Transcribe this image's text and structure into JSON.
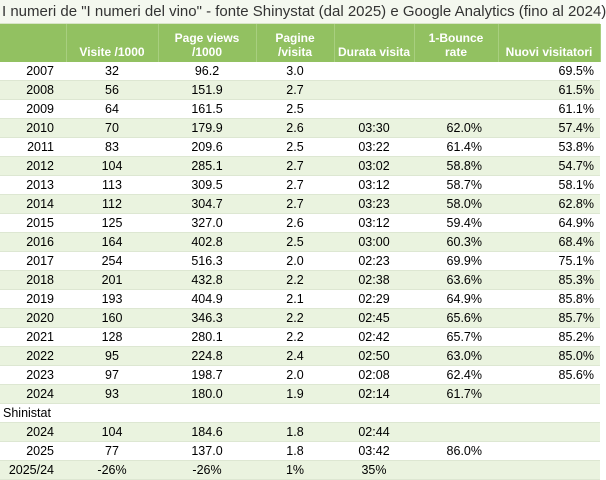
{
  "title": "I numeri de \"I numeri del vino\" - fonte Shinystat (dal 2025) e Google Analytics (fino al 2024)",
  "headers": [
    "",
    "Visite /1000",
    "Page views /1000",
    "Pagine /visita",
    "Durata visita",
    "1-Bounce rate",
    "Nuovi visitatori"
  ],
  "ga_rows": [
    [
      "2007",
      "32",
      "96.2",
      "3.0",
      "",
      "",
      "69.5%"
    ],
    [
      "2008",
      "56",
      "151.9",
      "2.7",
      "",
      "",
      "61.5%"
    ],
    [
      "2009",
      "64",
      "161.5",
      "2.5",
      "",
      "",
      "61.1%"
    ],
    [
      "2010",
      "70",
      "179.9",
      "2.6",
      "03:30",
      "62.0%",
      "57.4%"
    ],
    [
      "2011",
      "83",
      "209.6",
      "2.5",
      "03:22",
      "61.4%",
      "53.8%"
    ],
    [
      "2012",
      "104",
      "285.1",
      "2.7",
      "03:02",
      "58.8%",
      "54.7%"
    ],
    [
      "2013",
      "113",
      "309.5",
      "2.7",
      "03:12",
      "58.7%",
      "58.1%"
    ],
    [
      "2014",
      "112",
      "304.7",
      "2.7",
      "03:23",
      "58.0%",
      "62.8%"
    ],
    [
      "2015",
      "125",
      "327.0",
      "2.6",
      "03:12",
      "59.4%",
      "64.9%"
    ],
    [
      "2016",
      "164",
      "402.8",
      "2.5",
      "03:00",
      "60.3%",
      "68.4%"
    ],
    [
      "2017",
      "254",
      "516.3",
      "2.0",
      "02:23",
      "69.9%",
      "75.1%"
    ],
    [
      "2018",
      "201",
      "432.8",
      "2.2",
      "02:38",
      "63.6%",
      "85.3%"
    ],
    [
      "2019",
      "193",
      "404.9",
      "2.1",
      "02:29",
      "64.9%",
      "85.8%"
    ],
    [
      "2020",
      "160",
      "346.3",
      "2.2",
      "02:45",
      "65.6%",
      "85.7%"
    ],
    [
      "2021",
      "128",
      "280.1",
      "2.2",
      "02:42",
      "65.7%",
      "85.2%"
    ],
    [
      "2022",
      "95",
      "224.8",
      "2.4",
      "02:50",
      "63.0%",
      "85.0%"
    ],
    [
      "2023",
      "97",
      "198.7",
      "2.0",
      "02:08",
      "62.4%",
      "85.6%"
    ],
    [
      "2024",
      "93",
      "180.0",
      "1.9",
      "02:14",
      "61.7%",
      ""
    ]
  ],
  "section_label": "Shinistat",
  "shiny_rows": [
    [
      "2024",
      "104",
      "184.6",
      "1.8",
      "02:44",
      "",
      ""
    ],
    [
      "2025",
      "77",
      "137.0",
      "1.8",
      "03:42",
      "86.0%",
      ""
    ],
    [
      "2025/24",
      "-26%",
      "-26%",
      "1%",
      "35%",
      "",
      ""
    ]
  ]
}
